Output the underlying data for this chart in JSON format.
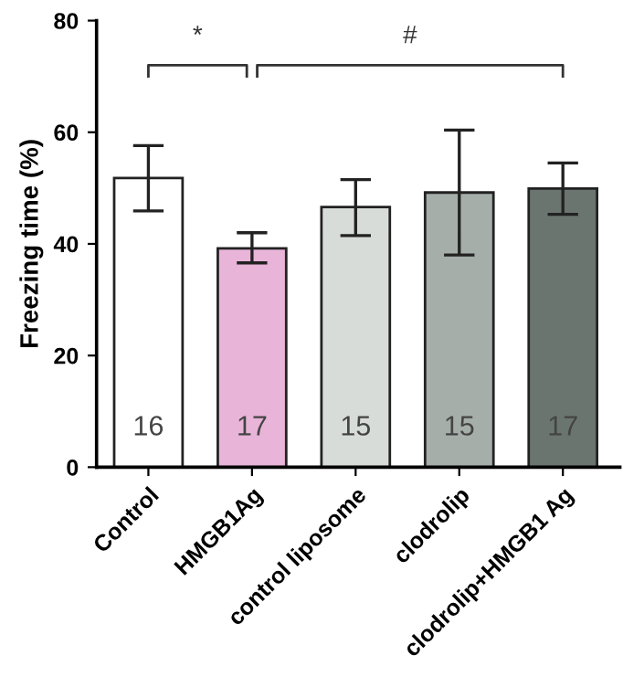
{
  "chart_data": {
    "type": "bar",
    "ylabel": "Freezing time (%)",
    "categories": [
      "Control",
      "HMGB1Ag",
      "control liposome",
      "clodrolip",
      "clodrolip+HMGB1 Ag"
    ],
    "values": [
      51.8,
      39.2,
      46.6,
      49.2,
      49.9
    ],
    "errors": [
      [
        45.9,
        57.6
      ],
      [
        36.6,
        42.0
      ],
      [
        41.5,
        51.5
      ],
      [
        38.0,
        60.4
      ],
      [
        45.3,
        54.5
      ]
    ],
    "colors": [
      "#ffffff",
      "#e8b4d8",
      "#d8dcd9",
      "#a6aeaa",
      "#6b7570"
    ],
    "ylim": [
      0,
      80
    ],
    "yticks": [
      0,
      20,
      40,
      60,
      80
    ],
    "grid": false,
    "annotations": [
      "*",
      "#",
      "16",
      "17",
      "15",
      "15",
      "17"
    ]
  }
}
